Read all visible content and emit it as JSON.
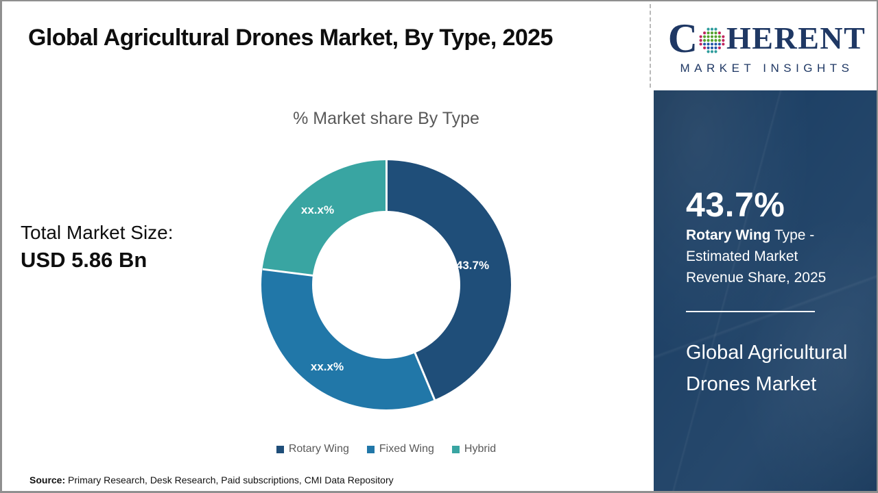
{
  "header": {
    "title": "Global Agricultural Drones Market, By Type, 2025"
  },
  "logo": {
    "c": "C",
    "rest": "HERENT",
    "subtitle": "MARKET INSIGHTS",
    "navy": "#1F3864",
    "globe_colors": {
      "t": "#2E9C9C",
      "g": "#55A22F",
      "c": "#C0265E",
      "b": "#2356A8"
    }
  },
  "chart_data": {
    "type": "pie",
    "donut": true,
    "title": "% Market share By Type",
    "categories": [
      "Rotary Wing",
      "Fixed Wing",
      "Hybrid"
    ],
    "values": [
      43.7,
      33.3,
      23.0
    ],
    "values_note": "Fixed Wing and Hybrid shares are masked as xx.x% in the figure; values estimated from arc angles",
    "displayed_labels": [
      "43.7%",
      "xx.x%",
      "xx.x%"
    ],
    "colors": [
      "#1F4E79",
      "#2177A8",
      "#39A5A2"
    ],
    "start_angle_deg": 0,
    "direction": "clockwise",
    "legend_position": "bottom"
  },
  "left_stat": {
    "label": "Total Market Size:",
    "value": "USD 5.86 Bn"
  },
  "side_panel": {
    "stat": "43.7%",
    "desc_bold": "Rotary Wing",
    "desc_rest": " Type - Estimated Market Revenue Share, 2025",
    "market": "Global Agricultural Drones Market",
    "bg": "#1E4166"
  },
  "source": {
    "label": "Source:",
    "text": " Primary Research, Desk Research, Paid subscriptions, CMI Data Repository"
  }
}
